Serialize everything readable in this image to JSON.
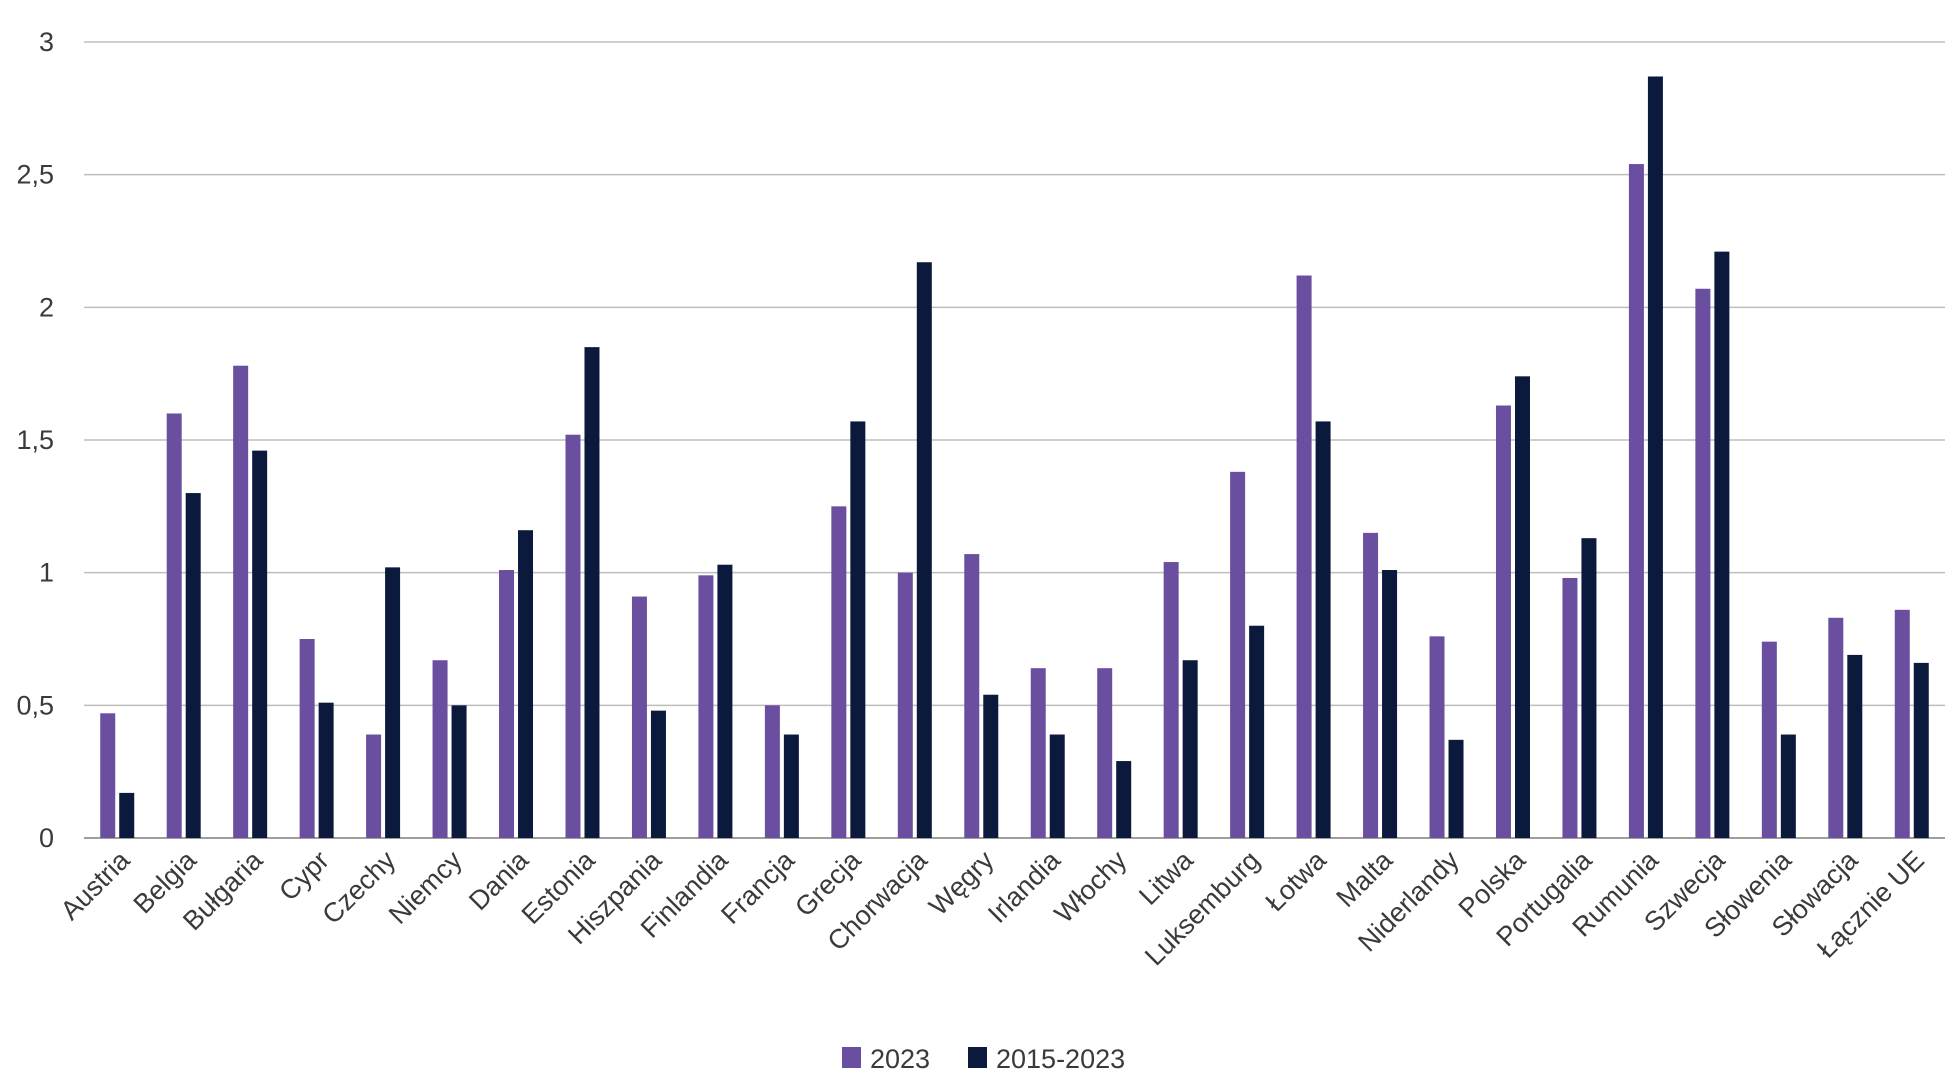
{
  "chart_data": {
    "type": "bar",
    "title": "",
    "xlabel": "",
    "ylabel": "",
    "ylim": [
      0,
      3
    ],
    "yticks": [
      0,
      0.5,
      1,
      1.5,
      2,
      2.5,
      3
    ],
    "ytick_labels": [
      "0",
      "0,5",
      "1",
      "1,5",
      "2",
      "2,5",
      "3"
    ],
    "grid": true,
    "legend_position": "bottom-center",
    "categories": [
      "Austria",
      "Belgia",
      "Bułgaria",
      "Cypr",
      "Czechy",
      "Niemcy",
      "Dania",
      "Estonia",
      "Hiszpania",
      "Finlandia",
      "Francja",
      "Grecja",
      "Chorwacja",
      "Węgry",
      "Irlandia",
      "Włochy",
      "Litwa",
      "Luksemburg",
      "Łotwa",
      "Malta",
      "Niderlandy",
      "Polska",
      "Portugalia",
      "Rumunia",
      "Szwecja",
      "Słowenia",
      "Słowacja",
      "Łącznie UE"
    ],
    "series": [
      {
        "name": "2023",
        "color": "#6a4fa0",
        "values": [
          0.47,
          1.6,
          1.78,
          0.75,
          0.39,
          0.67,
          1.01,
          1.52,
          0.91,
          0.99,
          0.5,
          1.25,
          1.0,
          1.07,
          0.64,
          0.64,
          1.04,
          1.38,
          2.12,
          1.15,
          0.76,
          1.63,
          0.98,
          2.54,
          2.07,
          0.74,
          0.83,
          0.86
        ]
      },
      {
        "name": "2015-2023",
        "color": "#0b1a3c",
        "values": [
          0.17,
          1.3,
          1.46,
          0.51,
          1.02,
          0.5,
          1.16,
          1.85,
          0.48,
          1.03,
          0.39,
          1.57,
          2.17,
          0.54,
          0.39,
          0.29,
          0.67,
          0.8,
          1.57,
          1.01,
          0.37,
          1.74,
          1.13,
          2.87,
          2.21,
          0.39,
          0.69,
          0.66
        ]
      }
    ]
  }
}
